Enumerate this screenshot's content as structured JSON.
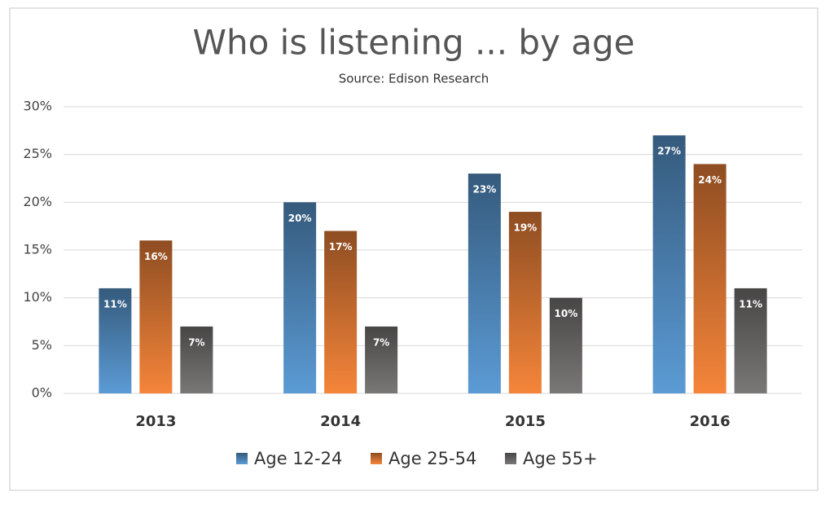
{
  "chart_data": {
    "type": "bar",
    "title": "Who is listening ... by age",
    "subtitle": "Source: Edison Research",
    "categories": [
      "2013",
      "2014",
      "2015",
      "2016"
    ],
    "series": [
      {
        "name": "Age 12-24",
        "color": "#5b9bd5",
        "values": [
          11,
          20,
          23,
          27
        ],
        "value_labels": [
          "11%",
          "20%",
          "23%",
          "27%"
        ]
      },
      {
        "name": "Age 25-54",
        "color": "#f5853a",
        "values": [
          16,
          17,
          19,
          24
        ],
        "value_labels": [
          "16%",
          "17%",
          "19%",
          "24%"
        ]
      },
      {
        "name": "Age 55+",
        "color": "#7a7877",
        "values": [
          7,
          7,
          10,
          11
        ],
        "value_labels": [
          "7%",
          "7%",
          "10%",
          "11%"
        ]
      }
    ],
    "ylim": [
      0,
      30
    ],
    "yticks": [
      {
        "value": 0,
        "label": "0%"
      },
      {
        "value": 5,
        "label": "5%"
      },
      {
        "value": 10,
        "label": "10%"
      },
      {
        "value": 15,
        "label": "15%"
      },
      {
        "value": 20,
        "label": "20%"
      },
      {
        "value": 25,
        "label": "25%"
      },
      {
        "value": 30,
        "label": "30%"
      }
    ],
    "grid": true,
    "legend": "bottom"
  }
}
